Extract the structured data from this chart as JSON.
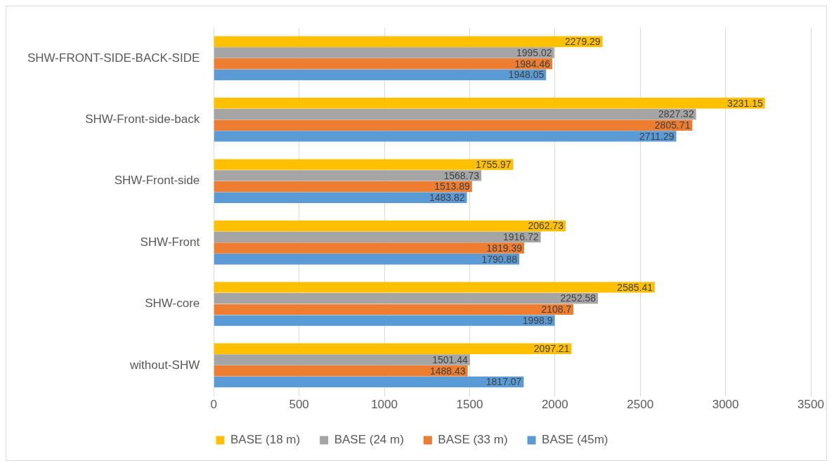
{
  "chart_data": {
    "type": "bar",
    "orientation": "horizontal",
    "categories": [
      "SHW-FRONT-SIDE-BACK-SIDE",
      "SHW-Front-side-back",
      "SHW-Front-side",
      "SHW-Front",
      "SHW-core",
      "without-SHW"
    ],
    "series": [
      {
        "name": "BASE (18 m)",
        "color": "#ffc000",
        "values": [
          2279.29,
          3231.15,
          1755.97,
          2062.73,
          2585.41,
          2097.21
        ]
      },
      {
        "name": "BASE (24 m)",
        "color": "#a5a5a5",
        "values": [
          1995.02,
          2827.32,
          1568.73,
          1916.72,
          2252.58,
          1501.44
        ]
      },
      {
        "name": "BASE (33 m)",
        "color": "#ed7d31",
        "values": [
          1984.46,
          2805.71,
          1513.89,
          1819.39,
          2108.7,
          1488.43
        ]
      },
      {
        "name": "BASE (45m)",
        "color": "#5b9bd5",
        "values": [
          1948.05,
          2711.29,
          1483.82,
          1790.88,
          1998.9,
          1817.07
        ]
      }
    ],
    "xlim": [
      0,
      3500
    ],
    "xticks": [
      0,
      500,
      1000,
      1500,
      2000,
      2500,
      3000,
      3500
    ],
    "grid": "x",
    "legend": "bottom",
    "data_labels": true
  }
}
